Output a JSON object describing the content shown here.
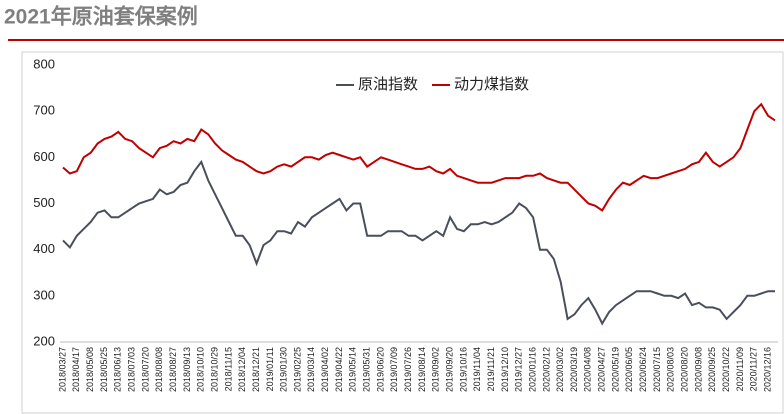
{
  "chart_data": {
    "type": "line",
    "title": "2021年原油套保案例",
    "categories": [
      "2018/03/27",
      null,
      "2018/04/17",
      null,
      "2018/05/08",
      null,
      "2018/05/25",
      null,
      "2018/06/13",
      null,
      "2018/07/03",
      null,
      "2018/07/20",
      null,
      "2018/08/08",
      null,
      "2018/08/27",
      null,
      "2018/09/13",
      null,
      "2018/10/10",
      null,
      "2018/10/29",
      null,
      "2018/11/15",
      null,
      "2018/12/04",
      null,
      "2018/12/21",
      null,
      "2019/01/11",
      null,
      "2019/01/30",
      null,
      "2019/02/25",
      null,
      "2019/03/14",
      null,
      "2019/04/02",
      null,
      "2019/04/22",
      null,
      "2019/05/14",
      null,
      "2019/05/31",
      null,
      "2019/06/20",
      null,
      "2019/07/09",
      null,
      "2019/07/26",
      null,
      "2019/08/14",
      null,
      "2019/09/02",
      null,
      "2019/09/20",
      null,
      "2019/10/16",
      null,
      "2019/11/04",
      null,
      "2019/11/21",
      null,
      "2019/12/10",
      null,
      "2019/12/27",
      null,
      "2020/01/16",
      null,
      "2020/02/12",
      null,
      "2020/03/02",
      null,
      "2020/03/19",
      null,
      "2020/04/08",
      null,
      "2020/04/27",
      null,
      "2020/05/19",
      null,
      "2020/06/05",
      null,
      "2020/06/24",
      null,
      "2020/07/15",
      null,
      "2020/08/03",
      null,
      "2020/08/20",
      null,
      "2020/09/08",
      null,
      "2020/09/25",
      null,
      "2020/10/22",
      null,
      "2020/11/09",
      null,
      "2020/11/27",
      null,
      "2020/12/16",
      null
    ],
    "series": [
      {
        "name": "原油指数",
        "color": "#4a4f5c",
        "values": [
          420,
          405,
          430,
          445,
          460,
          480,
          485,
          470,
          470,
          480,
          490,
          500,
          505,
          510,
          530,
          520,
          525,
          540,
          545,
          570,
          590,
          550,
          520,
          490,
          460,
          430,
          430,
          410,
          370,
          410,
          420,
          440,
          440,
          435,
          460,
          450,
          470,
          480,
          490,
          500,
          510,
          485,
          500,
          500,
          430,
          430,
          430,
          440,
          440,
          440,
          430,
          430,
          420,
          430,
          440,
          430,
          470,
          445,
          440,
          455,
          455,
          460,
          455,
          460,
          470,
          480,
          500,
          490,
          470,
          400,
          400,
          380,
          330,
          250,
          260,
          280,
          295,
          270,
          240,
          265,
          280,
          290,
          300,
          310,
          310,
          310,
          305,
          300,
          300,
          295,
          305,
          280,
          285,
          275,
          275,
          270,
          250,
          265,
          280,
          300,
          300,
          305,
          310,
          310
        ]
      },
      {
        "name": "动力煤指数",
        "color": "#c00000",
        "values": [
          578,
          565,
          570,
          600,
          610,
          630,
          640,
          645,
          655,
          640,
          635,
          620,
          610,
          600,
          620,
          625,
          635,
          630,
          640,
          635,
          660,
          650,
          630,
          615,
          605,
          595,
          590,
          580,
          570,
          565,
          570,
          580,
          585,
          580,
          590,
          600,
          600,
          595,
          605,
          610,
          605,
          600,
          595,
          600,
          580,
          590,
          600,
          595,
          590,
          585,
          580,
          575,
          575,
          580,
          570,
          565,
          575,
          560,
          555,
          550,
          545,
          545,
          545,
          550,
          555,
          555,
          555,
          560,
          560,
          565,
          555,
          550,
          545,
          545,
          530,
          515,
          500,
          495,
          485,
          510,
          530,
          545,
          540,
          550,
          560,
          555,
          555,
          560,
          565,
          570,
          575,
          585,
          590,
          610,
          590,
          580,
          590,
          600,
          620,
          660,
          700,
          715,
          690,
          680
        ]
      }
    ],
    "ylim": [
      200,
      800
    ],
    "yticks": [
      200,
      300,
      400,
      500,
      600,
      700,
      800
    ],
    "legend": "top"
  }
}
